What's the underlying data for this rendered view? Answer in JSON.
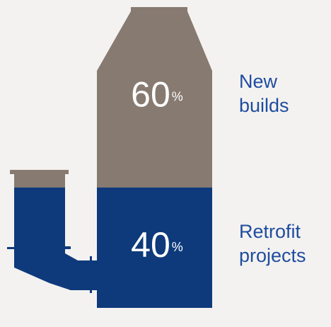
{
  "chart_data": {
    "type": "stacked-bar",
    "unit": "%",
    "series": [
      {
        "name": "Retrofit projects",
        "color": "#0e3a7c",
        "values": [
          40
        ]
      },
      {
        "name": "New builds",
        "color": "#877a70",
        "values": [
          60
        ]
      }
    ]
  }
}
